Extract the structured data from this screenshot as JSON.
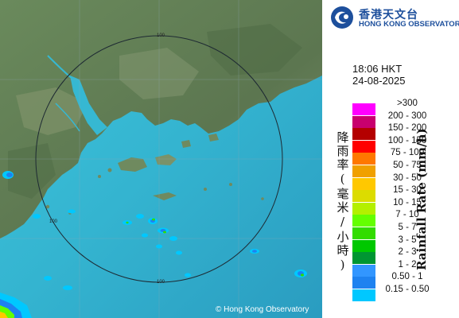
{
  "map": {
    "copyright": "© Hong Kong Observatory",
    "range_rings": [
      {
        "label": "100",
        "position": "north"
      },
      {
        "label": "100",
        "position": "west"
      },
      {
        "label": "100",
        "position": "south"
      }
    ],
    "colors": {
      "land": "#5f7a52",
      "sea": "#36b8d2",
      "sea_deep": "#2f9fc4",
      "rings": "#1e2a33",
      "grid": "#8fa7b3"
    }
  },
  "header": {
    "logo_icon": "hko-emblem-icon",
    "org_name_cn": "香港天文台",
    "org_name_en": "HONG KONG OBSERVATORY"
  },
  "timestamp": {
    "time": "18:06 HKT",
    "date": "24-08-2025"
  },
  "legend": {
    "title_cn": "降雨率(毫米/小時)",
    "title_en": "Rainfall Rate (mm/h)",
    "items": [
      {
        "label": ">300",
        "color": "#ff00ff"
      },
      {
        "label": "200 - 300",
        "color": "#c8006e"
      },
      {
        "label": "150 - 200",
        "color": "#b40000"
      },
      {
        "label": "100 - 150",
        "color": "#ff0000"
      },
      {
        "label": "75 - 100",
        "color": "#ff7800"
      },
      {
        "label": "50 - 75",
        "color": "#f0a000"
      },
      {
        "label": "30 - 50",
        "color": "#ffc800"
      },
      {
        "label": "15 - 30",
        "color": "#dcdc00"
      },
      {
        "label": "10 - 15",
        "color": "#b4f000"
      },
      {
        "label": "7 - 10",
        "color": "#64ff00"
      },
      {
        "label": "5 - 7",
        "color": "#32dc00"
      },
      {
        "label": "3 - 5",
        "color": "#00c800"
      },
      {
        "label": "2 - 3",
        "color": "#009632"
      },
      {
        "label": "1 - 2",
        "color": "#3296ff"
      },
      {
        "label": "0.50 - 1",
        "color": "#1e82f0"
      },
      {
        "label": "0.15 - 0.50",
        "color": "#00c8ff"
      }
    ]
  }
}
